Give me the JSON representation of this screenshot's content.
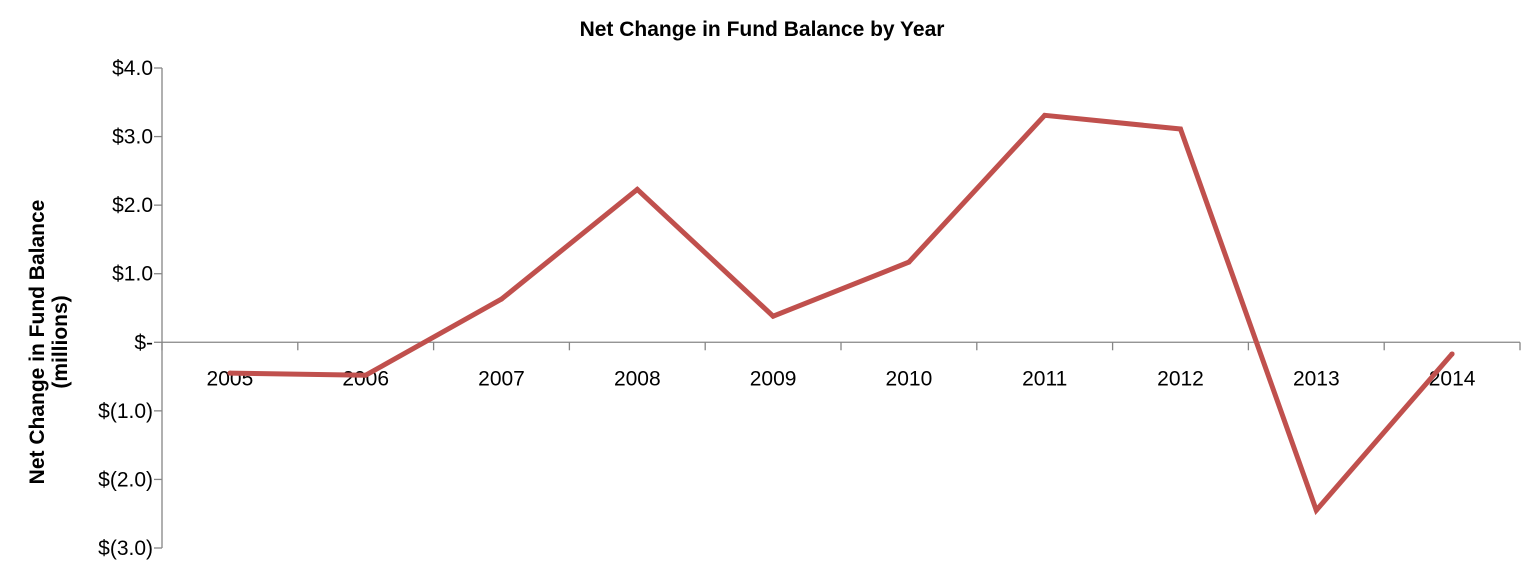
{
  "chart_data": {
    "type": "line",
    "title": "Net Change in Fund Balance by Year",
    "xlabel": "",
    "ylabel": [
      "Net Change in Fund Balance",
      "(millions)"
    ],
    "categories": [
      "2005",
      "2006",
      "2007",
      "2008",
      "2009",
      "2010",
      "2011",
      "2012",
      "2013",
      "2014"
    ],
    "series": [
      {
        "color": "#c0504d",
        "values": [
          -0.45,
          -0.48,
          0.63,
          2.23,
          0.38,
          1.17,
          3.31,
          3.11,
          -2.45,
          -0.17
        ]
      }
    ],
    "ylim": [
      -3.0,
      4.0
    ],
    "yticks": [
      4.0,
      3.0,
      2.0,
      1.0,
      0.0,
      -1.0,
      -2.0,
      -3.0
    ],
    "ytick_labels": [
      "$4.0",
      "$3.0",
      "$2.0",
      "$1.0",
      "$-",
      "$(1.0)",
      "$(2.0)",
      "$(3.0)"
    ],
    "grid": false,
    "legend": "none"
  }
}
